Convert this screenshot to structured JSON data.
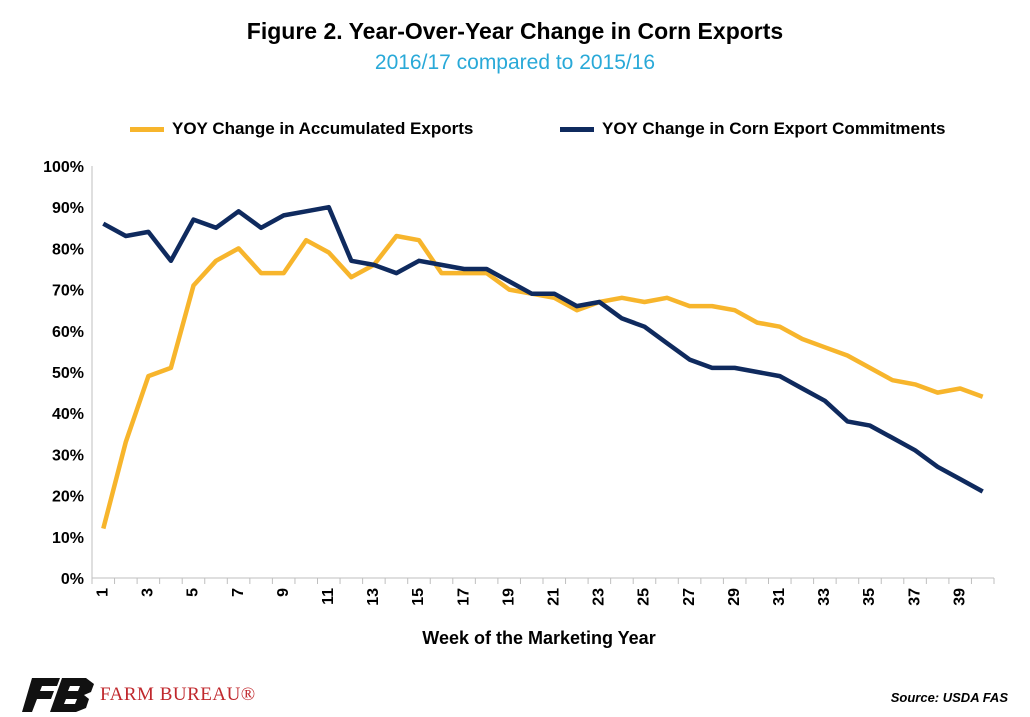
{
  "title": "Figure 2. Year-Over-Year Change in Corn Exports",
  "subtitle": "2016/17 compared to 2015/16",
  "source": "Source: USDA FAS",
  "logo_text": "FARM BUREAU®",
  "colors": {
    "accumulated": "#f7b52c",
    "commitments": "#0f2a5e",
    "subtitle": "#29a9d8",
    "logo": "#c0282d"
  },
  "chart_data": {
    "type": "line",
    "xlabel": "Week of the Marketing Year",
    "ylabel": "",
    "x": [
      1,
      2,
      3,
      4,
      5,
      6,
      7,
      8,
      9,
      10,
      11,
      12,
      13,
      14,
      15,
      16,
      17,
      18,
      19,
      20,
      21,
      22,
      23,
      24,
      25,
      26,
      27,
      28,
      29,
      30,
      31,
      32,
      33,
      34,
      35,
      36,
      37,
      38,
      39,
      40
    ],
    "x_tick_labels": [
      "1",
      "3",
      "5",
      "7",
      "9",
      "11",
      "13",
      "15",
      "17",
      "19",
      "21",
      "23",
      "25",
      "27",
      "29",
      "31",
      "33",
      "35",
      "37",
      "39"
    ],
    "ylim": [
      0,
      100
    ],
    "y_ticks": [
      "0%",
      "10%",
      "20%",
      "30%",
      "40%",
      "50%",
      "60%",
      "70%",
      "80%",
      "90%",
      "100%"
    ],
    "grid": false,
    "legend_position": "top",
    "series": [
      {
        "name": "YOY Change in Accumulated Exports",
        "color": "#f7b52c",
        "values": [
          12,
          33,
          49,
          51,
          71,
          77,
          80,
          74,
          74,
          82,
          79,
          73,
          76,
          83,
          82,
          74,
          74,
          74,
          70,
          69,
          68,
          65,
          67,
          68,
          67,
          68,
          66,
          66,
          65,
          62,
          61,
          58,
          56,
          54,
          51,
          48,
          47,
          45,
          46,
          44
        ]
      },
      {
        "name": "YOY Change in Corn Export Commitments",
        "color": "#0f2a5e",
        "values": [
          86,
          83,
          84,
          77,
          87,
          85,
          89,
          85,
          88,
          89,
          90,
          77,
          76,
          74,
          77,
          76,
          75,
          75,
          72,
          69,
          69,
          66,
          67,
          63,
          61,
          57,
          53,
          51,
          51,
          50,
          49,
          46,
          43,
          38,
          37,
          34,
          31,
          27,
          24,
          21
        ]
      }
    ]
  }
}
